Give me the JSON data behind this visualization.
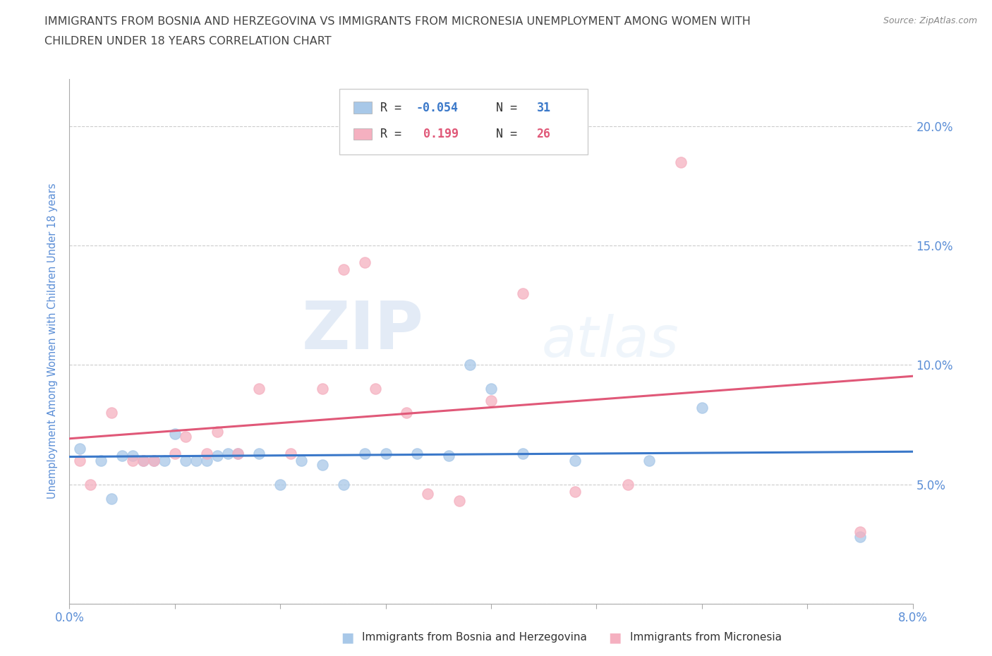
{
  "title_line1": "IMMIGRANTS FROM BOSNIA AND HERZEGOVINA VS IMMIGRANTS FROM MICRONESIA UNEMPLOYMENT AMONG WOMEN WITH",
  "title_line2": "CHILDREN UNDER 18 YEARS CORRELATION CHART",
  "source_text": "Source: ZipAtlas.com",
  "ylabel": "Unemployment Among Women with Children Under 18 years",
  "xlim": [
    0.0,
    0.08
  ],
  "ylim": [
    0.0,
    0.22
  ],
  "bosnia_R": -0.054,
  "bosnia_N": 31,
  "micronesia_R": 0.199,
  "micronesia_N": 26,
  "bosnia_color": "#a8c8e8",
  "micronesia_color": "#f5b0c0",
  "bosnia_line_color": "#3a78c9",
  "micronesia_line_color": "#e05878",
  "bosnia_x": [
    0.001,
    0.003,
    0.004,
    0.005,
    0.006,
    0.007,
    0.008,
    0.009,
    0.01,
    0.011,
    0.012,
    0.013,
    0.014,
    0.015,
    0.016,
    0.018,
    0.02,
    0.022,
    0.024,
    0.026,
    0.028,
    0.03,
    0.033,
    0.036,
    0.038,
    0.04,
    0.043,
    0.048,
    0.055,
    0.06,
    0.075
  ],
  "bosnia_y": [
    0.065,
    0.06,
    0.044,
    0.062,
    0.062,
    0.06,
    0.06,
    0.06,
    0.071,
    0.06,
    0.06,
    0.06,
    0.062,
    0.063,
    0.063,
    0.063,
    0.05,
    0.06,
    0.058,
    0.05,
    0.063,
    0.063,
    0.063,
    0.062,
    0.1,
    0.09,
    0.063,
    0.06,
    0.06,
    0.082,
    0.028
  ],
  "micronesia_x": [
    0.001,
    0.002,
    0.004,
    0.006,
    0.007,
    0.008,
    0.01,
    0.011,
    0.013,
    0.014,
    0.016,
    0.018,
    0.021,
    0.024,
    0.026,
    0.028,
    0.029,
    0.032,
    0.034,
    0.037,
    0.04,
    0.043,
    0.048,
    0.053,
    0.058,
    0.075
  ],
  "micronesia_y": [
    0.06,
    0.05,
    0.08,
    0.06,
    0.06,
    0.06,
    0.063,
    0.07,
    0.063,
    0.072,
    0.063,
    0.09,
    0.063,
    0.09,
    0.14,
    0.143,
    0.09,
    0.08,
    0.046,
    0.043,
    0.085,
    0.13,
    0.047,
    0.05,
    0.185,
    0.03
  ],
  "watermark_zip": "ZIP",
  "watermark_atlas": "atlas",
  "background_color": "#ffffff",
  "grid_color": "#cccccc",
  "axis_label_color": "#5b8ed6",
  "tick_label_color": "#5b8ed6",
  "title_color": "#444444",
  "legend_text_color": "#333333"
}
